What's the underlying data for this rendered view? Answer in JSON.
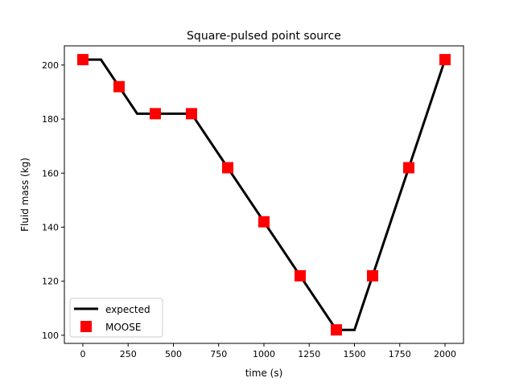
{
  "chart_data": {
    "type": "line",
    "title": "Square-pulsed point source",
    "xlabel": "time (s)",
    "ylabel": "Fluid mass (kg)",
    "xlim": [
      -102,
      2102
    ],
    "ylim": [
      97,
      207.1
    ],
    "xticks": [
      0,
      250,
      500,
      750,
      1000,
      1250,
      1500,
      1750,
      2000
    ],
    "yticks": [
      100,
      120,
      140,
      160,
      180,
      200
    ],
    "grid": false,
    "legend_position": "lower-left",
    "series": [
      {
        "name": "expected",
        "style": "line",
        "color": "#000000",
        "x": [
          0,
          100,
          300,
          600,
          1400,
          1500,
          2000
        ],
        "y": [
          202,
          202,
          182,
          182,
          102,
          102,
          202
        ]
      },
      {
        "name": "MOOSE",
        "style": "square-markers",
        "color": "#ff0000",
        "x": [
          0,
          200,
          400,
          600,
          800,
          1000,
          1200,
          1400,
          1600,
          1800,
          2000
        ],
        "y": [
          202,
          192,
          182,
          182,
          162,
          142,
          122,
          102,
          122,
          162,
          202
        ]
      }
    ]
  }
}
